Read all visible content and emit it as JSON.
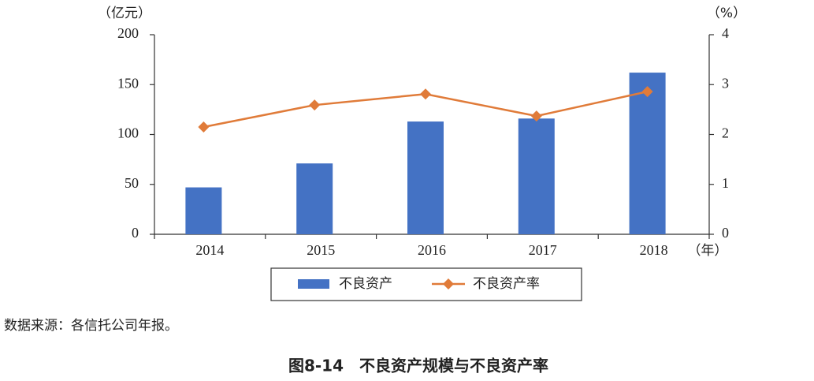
{
  "chart_data": {
    "type": "bar",
    "title": "图8-14　不良资产规模与不良资产率",
    "source": "数据来源：各信托公司年报。",
    "y_label": "（亿元）",
    "y2_label": "（%）",
    "x_label": "（年）",
    "categories": [
      "2014",
      "2015",
      "2016",
      "2017",
      "2018"
    ],
    "series": [
      {
        "name": "不良资产",
        "type": "bar",
        "color": "#4472c4",
        "values": [
          47,
          71,
          113,
          116,
          162
        ]
      },
      {
        "name": "不良资产率",
        "type": "line",
        "axis": "y2",
        "color": "#e07b39",
        "values": [
          2.15,
          2.59,
          2.81,
          2.37,
          2.86
        ]
      }
    ],
    "ylim": [
      0,
      200
    ],
    "yticks": [
      0,
      50,
      100,
      150,
      200
    ],
    "y2lim": [
      0,
      4
    ],
    "y2ticks": [
      0,
      1,
      2,
      3,
      4
    ],
    "grid": false
  }
}
